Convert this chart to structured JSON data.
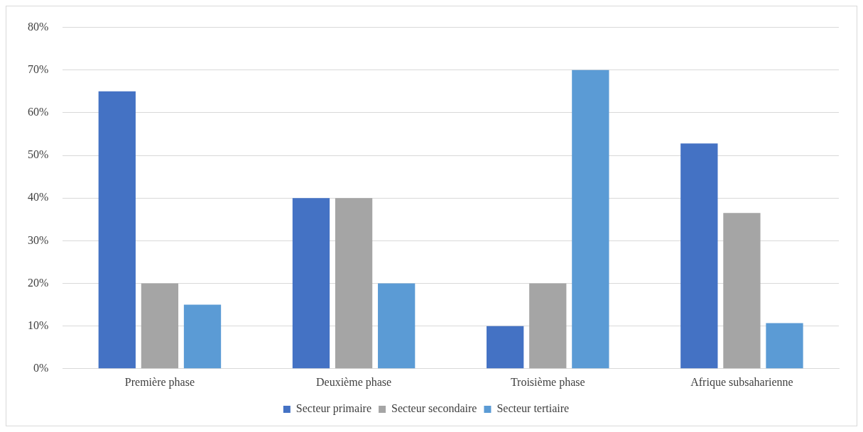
{
  "chart_data": {
    "type": "bar",
    "categories": [
      "Première phase",
      "Deuxième phase",
      "Troisième phase",
      "Afrique subsaharienne"
    ],
    "series": [
      {
        "name": "Secteur primaire",
        "color": "#4472c4",
        "values": [
          65,
          40,
          10,
          52.8
        ]
      },
      {
        "name": "Secteur secondaire",
        "color": "#a5a5a5",
        "values": [
          20,
          40,
          20,
          36.5
        ]
      },
      {
        "name": "Secteur tertiaire",
        "color": "#5b9bd5",
        "values": [
          15,
          20,
          70,
          10.7
        ]
      }
    ],
    "ylim": [
      0,
      80
    ],
    "yticks": [
      {
        "value": 0,
        "label": "0%"
      },
      {
        "value": 10,
        "label": "10%"
      },
      {
        "value": 20,
        "label": "20%"
      },
      {
        "value": 30,
        "label": "30%"
      },
      {
        "value": 40,
        "label": "40%"
      },
      {
        "value": 50,
        "label": "50%"
      },
      {
        "value": 60,
        "label": "60%"
      },
      {
        "value": 70,
        "label": "70%"
      },
      {
        "value": 80,
        "label": "80%"
      }
    ],
    "grid": "y",
    "legend": "bottom"
  }
}
